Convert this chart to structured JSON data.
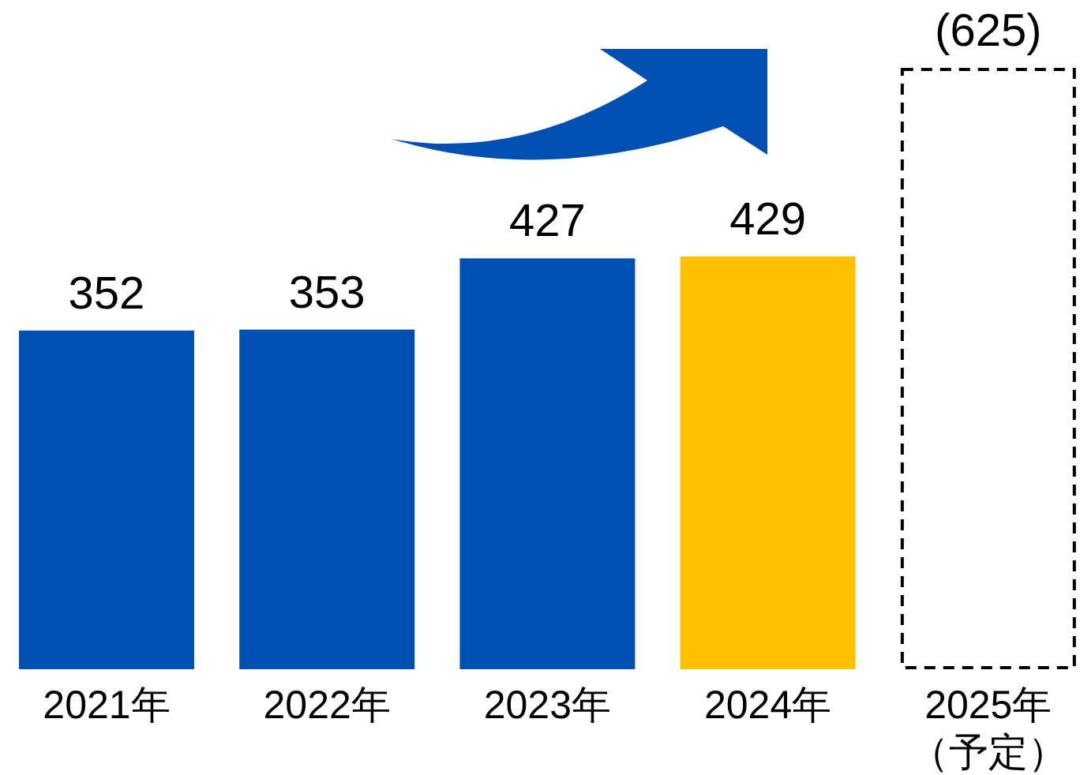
{
  "chart_data": {
    "type": "bar",
    "stacked": true,
    "categories": [
      "2021年",
      "2022年",
      "2023年",
      "2024年",
      "2025年（予定）"
    ],
    "series": [
      {
        "colors": [
          "#0050b4",
          "#0050b4",
          "#0050b4",
          "#ffc000",
          null
        ],
        "values": [
          352,
          353,
          427,
          429,
          null
        ],
        "value_labels": [
          "352",
          "353",
          "427",
          "429",
          null
        ]
      },
      {
        "color": "#000000",
        "line_style": "dashed",
        "values": [
          null,
          null,
          null,
          null,
          625
        ],
        "value_labels": [
          null,
          null,
          null,
          null,
          "(625)"
        ]
      }
    ]
  }
}
